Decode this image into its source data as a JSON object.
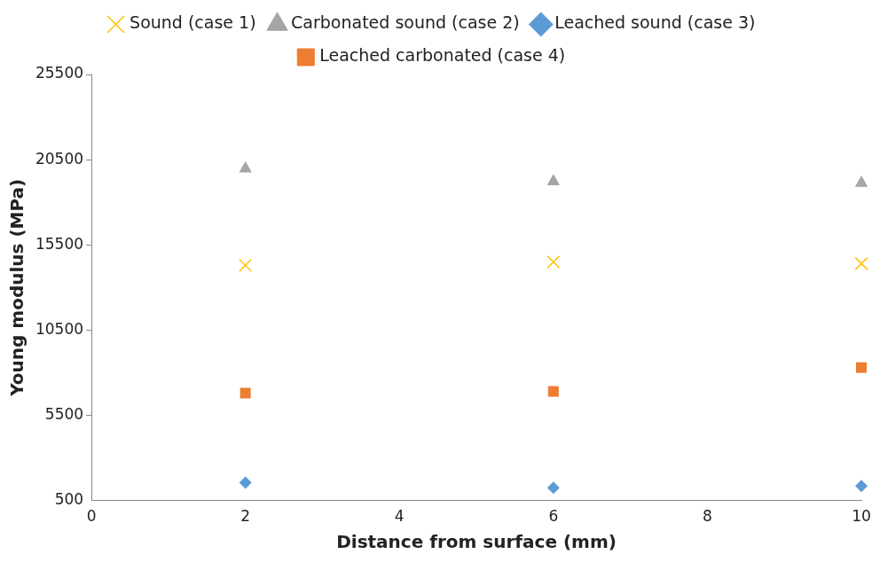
{
  "chart_data": {
    "type": "scatter",
    "xlabel": "Distance from surface (mm)",
    "ylabel": "Young modulus (MPa)",
    "xlim": [
      0,
      10
    ],
    "xticks": [
      0,
      2,
      4,
      6,
      8,
      10
    ],
    "ylim": [
      500,
      25500
    ],
    "yticks": [
      500,
      5500,
      10500,
      15500,
      20500,
      25500
    ],
    "grid": false,
    "legend": "top",
    "series": [
      {
        "name": "Sound (case 1)",
        "color": "#ffc000",
        "marker": "cross",
        "x": [
          2,
          6,
          10
        ],
        "values": [
          14300,
          14500,
          14400
        ]
      },
      {
        "name": "Carbonated sound (case 2)",
        "color": "#a5a5a5",
        "marker": "triangle",
        "x": [
          2,
          6,
          10
        ],
        "values": [
          20000,
          19250,
          19150
        ]
      },
      {
        "name": "Leached sound (case 3)",
        "color": "#5b9bd5",
        "marker": "diamond",
        "x": [
          2,
          6,
          10
        ],
        "values": [
          1550,
          1250,
          1350
        ]
      },
      {
        "name": "Leached carbonated (case 4)",
        "color": "#ed7d31",
        "marker": "square",
        "x": [
          2,
          6,
          10
        ],
        "values": [
          6800,
          6900,
          8300
        ]
      }
    ]
  }
}
